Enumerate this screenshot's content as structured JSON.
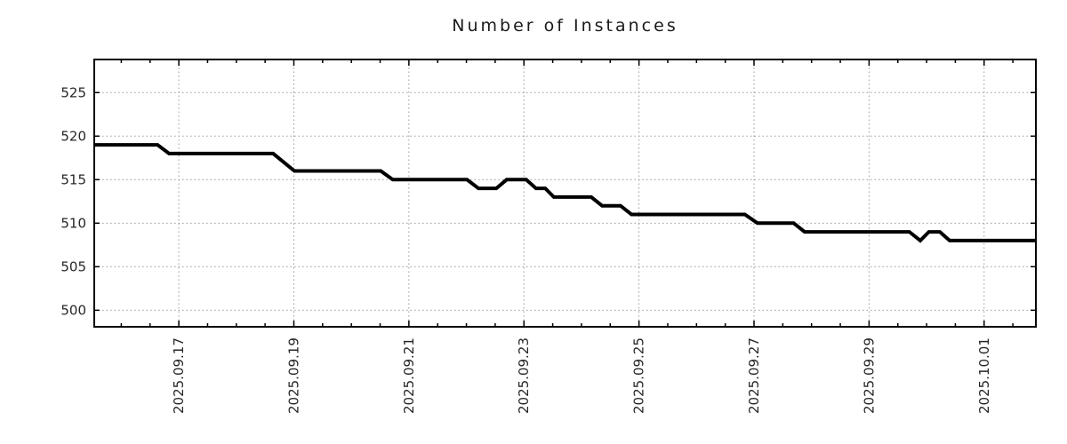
{
  "page": {
    "background": "#ffffff"
  },
  "chart_data": {
    "type": "line",
    "title": "Number of Instances",
    "x_axis": {
      "tick_labels": [
        "2025.09.17",
        "2025.09.19",
        "2025.09.21",
        "2025.09.23",
        "2025.09.25",
        "2025.09.27",
        "2025.09.29",
        "2025.10.01"
      ],
      "tick_days": [
        0,
        2,
        4,
        6,
        8,
        10,
        12,
        14
      ],
      "range_days": [
        -1.47,
        14.9
      ],
      "minor_tick_interval_days": 0.5,
      "label_rotation_deg": -90
    },
    "y_axis": {
      "ticks": [
        500,
        505,
        510,
        515,
        520,
        525
      ],
      "range": [
        498.1,
        528.8
      ]
    },
    "grid": {
      "style": "dotted",
      "on": true,
      "color": "#9a9a9a"
    },
    "legend": {
      "visible": false
    },
    "series": [
      {
        "name": "Number of Instances",
        "color": "#000000",
        "line_width": 4,
        "points": [
          [
            -1.47,
            519
          ],
          [
            -0.37,
            519
          ],
          [
            -0.17,
            518
          ],
          [
            1.64,
            518
          ],
          [
            2.01,
            516
          ],
          [
            3.51,
            516
          ],
          [
            3.72,
            515
          ],
          [
            5.01,
            515
          ],
          [
            5.21,
            514
          ],
          [
            5.52,
            514
          ],
          [
            5.7,
            515
          ],
          [
            6.04,
            515
          ],
          [
            6.21,
            514
          ],
          [
            6.37,
            514
          ],
          [
            6.52,
            513
          ],
          [
            7.17,
            513
          ],
          [
            7.36,
            512
          ],
          [
            7.68,
            512
          ],
          [
            7.87,
            511
          ],
          [
            9.84,
            511
          ],
          [
            10.06,
            510
          ],
          [
            10.69,
            510
          ],
          [
            10.88,
            509
          ],
          [
            12.7,
            509
          ],
          [
            12.89,
            508
          ],
          [
            13.04,
            509
          ],
          [
            13.23,
            509
          ],
          [
            13.4,
            508
          ],
          [
            14.9,
            508
          ]
        ]
      }
    ],
    "styles": {
      "axis_color": "#000000",
      "tick_label_color": "#262626",
      "title_color": "#1a1a1a"
    }
  }
}
